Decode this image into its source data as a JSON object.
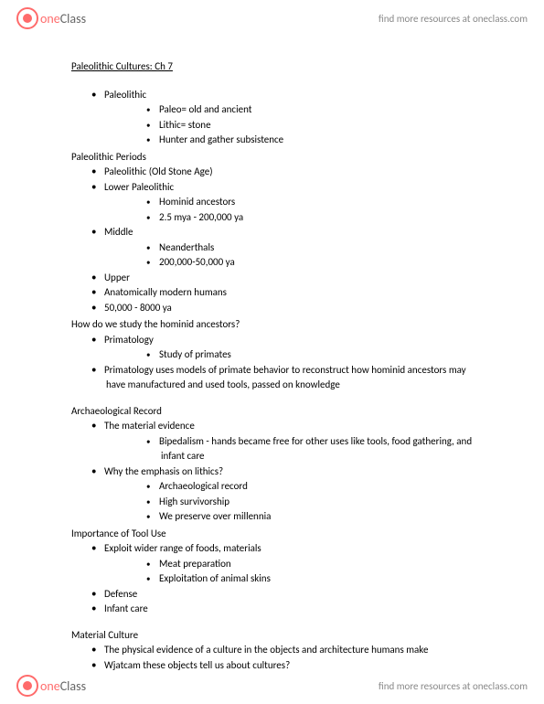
{
  "header": {
    "logo_one": "one",
    "logo_class": "Class",
    "link_text": "find more resources at oneclass.com"
  },
  "footer": {
    "logo_one": "one",
    "logo_class": "Class",
    "link_text": "find more resources at oneclass.com"
  },
  "doc": {
    "title": "Paleolithic Cultures: Ch 7",
    "s1_i1": "Paleolithic",
    "s1_i1a": "Paleo= old and ancient",
    "s1_i1b": "Lithic= stone",
    "s1_i1c": "Hunter and gather subsistence",
    "h2": "Paleolithic Periods",
    "s2_i1": "Paleolithic (Old Stone Age)",
    "s2_i2": "Lower Paleolithic",
    "s2_i2a": "Hominid ancestors",
    "s2_i2b": "2.5 mya - 200,000 ya",
    "s2_i3": "Middle",
    "s2_i3a": "Neanderthals",
    "s2_i3b": "200,000-50,000 ya",
    "s2_i4": "Upper",
    "s2_i5": "Anatomically modern humans",
    "s2_i6": "50,000 - 8000 ya",
    "h3": "How do we study the hominid ancestors?",
    "s3_i1": "Primatology",
    "s3_i1a": "Study of primates",
    "s3_i2": "Primatology uses models of primate behavior to reconstruct how hominid ancestors may have manufactured and used tools, passed on knowledge",
    "h4": "Archaeological Record",
    "s4_i1": "The  material evidence",
    "s4_i1a": "Bipedalism - hands became free for other uses like tools, food gathering, and infant care",
    "s4_i2": "Why the emphasis on lithics?",
    "s4_i2a": "Archaeological record",
    "s4_i2b": "High survivorship",
    "s4_i2c": "We preserve over millennia",
    "h5": "Importance of Tool Use",
    "s5_i1": "Exploit wider range of foods, materials",
    "s5_i1a": "Meat preparation",
    "s5_i1b": "Exploitation of animal skins",
    "s5_i2": "Defense",
    "s5_i3": "Infant care",
    "h6": "Material Culture",
    "s6_i1": "The physical evidence of a culture in the objects and architecture humans make",
    "s6_i2": "Wjatcam these objects tell us about cultures?"
  }
}
